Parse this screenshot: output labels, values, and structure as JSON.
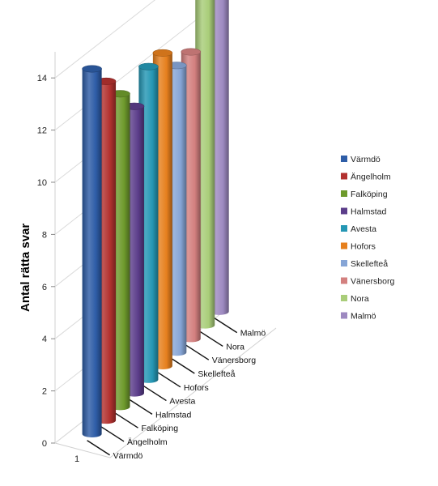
{
  "chart_data": {
    "type": "bar",
    "style": "3d-cylinder",
    "ylabel": "Antal rätta svar",
    "xticks": [
      "1"
    ],
    "ylim": [
      0,
      14
    ],
    "yticks": [
      "0",
      "2",
      "4",
      "6",
      "8",
      "10",
      "12",
      "14"
    ],
    "grid": true,
    "legend_position": "right",
    "series": [
      {
        "name": "Värmdö",
        "value": 14,
        "color": "#2e5da7"
      },
      {
        "name": "Ängelholm",
        "value": 13,
        "color": "#b2312f"
      },
      {
        "name": "Falköping",
        "value": 12,
        "color": "#6e9a2c"
      },
      {
        "name": "Halmstad",
        "value": 11,
        "color": "#5b3d8a"
      },
      {
        "name": "Avesta",
        "value": 12,
        "color": "#2597b4"
      },
      {
        "name": "Hofors",
        "value": 12,
        "color": "#e6801e"
      },
      {
        "name": "Skellefteå",
        "value": 11,
        "color": "#86a5d6"
      },
      {
        "name": "Vänersborg",
        "value": 11,
        "color": "#d3807f"
      },
      {
        "name": "Nora",
        "value": 15,
        "color": "#a9cd79"
      },
      {
        "name": "Malmö",
        "value": 13,
        "color": "#9d89c0"
      }
    ]
  }
}
